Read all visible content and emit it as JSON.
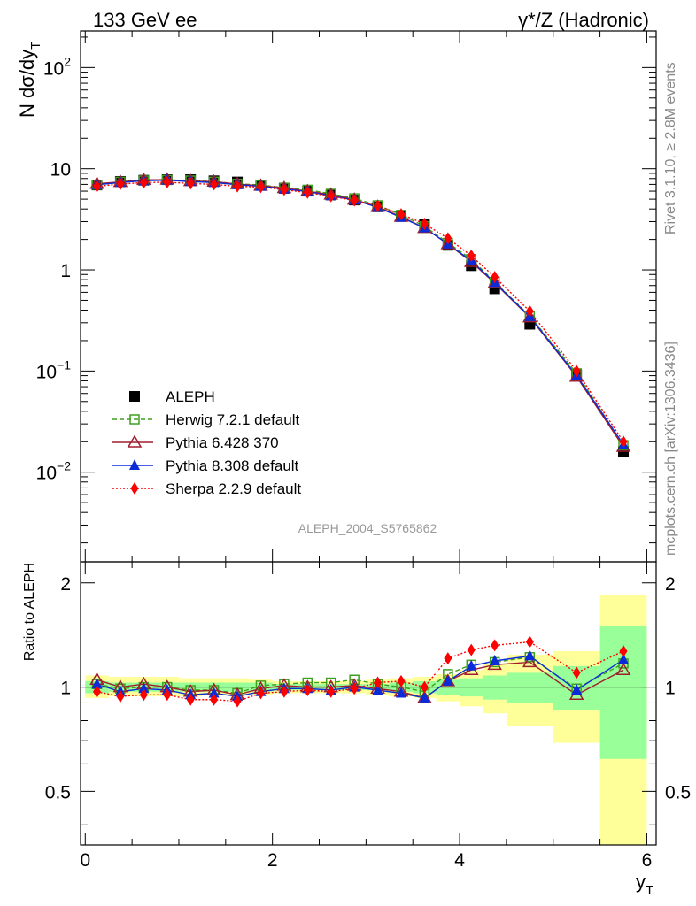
{
  "header": {
    "left_title": "133 GeV ee",
    "right_title": "γ*/Z (Hadronic)"
  },
  "side_text": {
    "upper": "Rivet 3.1.10, ≥ 2.8M events",
    "lower": "mcplots.cern.ch [arXiv:1306.3436]"
  },
  "watermark": "ALEPH_2004_S5765862",
  "chart_data": [
    {
      "type": "scatter",
      "panel": "main",
      "ylabel": "N dσ/dy",
      "ylabel_sub": "T",
      "yscale": "log",
      "ylim": [
        0.0013,
        230
      ],
      "xlim": [
        -0.05,
        6.1
      ],
      "yticks": [
        {
          "value": 100,
          "base": "10",
          "exp": "2"
        },
        {
          "value": 10,
          "base": "10",
          "exp": ""
        },
        {
          "value": 1,
          "base": "1",
          "exp": ""
        },
        {
          "value": 0.1,
          "base": "10",
          "exp": "−1"
        },
        {
          "value": 0.01,
          "base": "10",
          "exp": "−2"
        }
      ],
      "x": [
        0.125,
        0.375,
        0.625,
        0.875,
        1.125,
        1.375,
        1.625,
        1.875,
        2.125,
        2.375,
        2.625,
        2.875,
        3.125,
        3.375,
        3.625,
        3.875,
        4.125,
        4.375,
        4.75,
        5.25,
        5.75
      ],
      "legend_position": "lower-left",
      "series": [
        {
          "name": "ALEPH",
          "color": "#000000",
          "marker": "square-filled",
          "line": "none",
          "values": [
            6.9,
            7.5,
            7.7,
            7.8,
            7.8,
            7.6,
            7.4,
            6.9,
            6.4,
            6.0,
            5.5,
            4.9,
            4.2,
            3.4,
            2.8,
            1.75,
            1.1,
            0.65,
            0.29,
            0.092,
            0.016
          ]
        },
        {
          "name": "Herwig 7.2.1 default",
          "color": "#3f9f1f",
          "marker": "square-open",
          "line": "dashed",
          "values": [
            6.95,
            7.45,
            7.65,
            7.75,
            7.65,
            7.45,
            7.1,
            6.9,
            6.5,
            6.2,
            5.65,
            5.1,
            4.35,
            3.5,
            2.7,
            1.85,
            1.28,
            0.76,
            0.35,
            0.095,
            0.0185
          ]
        },
        {
          "name": "Pythia 6.428 370",
          "color": "#9f1f2f",
          "marker": "triangle-open",
          "line": "solid",
          "values": [
            7.1,
            7.4,
            7.75,
            7.8,
            7.55,
            7.45,
            7.05,
            6.8,
            6.45,
            6.0,
            5.55,
            4.95,
            4.2,
            3.35,
            2.6,
            1.8,
            1.2,
            0.74,
            0.34,
            0.088,
            0.0178
          ]
        },
        {
          "name": "Pythia 8.308 default",
          "color": "#0b2bd8",
          "marker": "triangle-filled",
          "line": "solid",
          "values": [
            6.95,
            7.3,
            7.6,
            7.7,
            7.45,
            7.3,
            6.95,
            6.7,
            6.3,
            5.95,
            5.4,
            4.9,
            4.15,
            3.3,
            2.6,
            1.8,
            1.23,
            0.75,
            0.345,
            0.09,
            0.0188
          ]
        },
        {
          "name": "Sherpa 2.2.9 default",
          "color": "#ff0000",
          "marker": "diamond-filled",
          "line": "dotted",
          "values": [
            6.7,
            7.05,
            7.3,
            7.35,
            7.15,
            7.0,
            6.7,
            6.6,
            6.2,
            5.8,
            5.35,
            4.85,
            4.3,
            3.55,
            2.85,
            2.05,
            1.38,
            0.85,
            0.39,
            0.1,
            0.02
          ]
        }
      ]
    },
    {
      "type": "scatter",
      "panel": "ratio",
      "ylabel": "Ratio to ALEPH",
      "xlabel": "y",
      "xlabel_sub": "T",
      "yscale": "log",
      "ylim": [
        0.35,
        2.3
      ],
      "xlim": [
        -0.05,
        6.1
      ],
      "yticks": [
        0.5,
        1,
        2
      ],
      "xticks": [
        0,
        2,
        4,
        6
      ],
      "reference_line": 1,
      "bins": [
        [
          0,
          0.25
        ],
        [
          0.25,
          0.5
        ],
        [
          0.5,
          0.75
        ],
        [
          0.75,
          1
        ],
        [
          1,
          1.25
        ],
        [
          1.25,
          1.5
        ],
        [
          1.5,
          1.75
        ],
        [
          1.75,
          2
        ],
        [
          2,
          2.25
        ],
        [
          2.25,
          2.5
        ],
        [
          2.5,
          2.75
        ],
        [
          2.75,
          3
        ],
        [
          3,
          3.25
        ],
        [
          3.25,
          3.5
        ],
        [
          3.5,
          3.75
        ],
        [
          3.75,
          4
        ],
        [
          4,
          4.25
        ],
        [
          4.25,
          4.5
        ],
        [
          4.5,
          5
        ],
        [
          5,
          5.5
        ],
        [
          5.5,
          6
        ]
      ],
      "data_stat_band": {
        "color": "#99ff99",
        "lo": [
          0.96,
          0.97,
          0.97,
          0.97,
          0.97,
          0.97,
          0.97,
          0.97,
          0.98,
          0.98,
          0.98,
          0.98,
          0.98,
          0.97,
          0.96,
          0.95,
          0.94,
          0.92,
          0.9,
          0.86,
          0.62
        ],
        "hi": [
          1.04,
          1.03,
          1.03,
          1.03,
          1.03,
          1.03,
          1.03,
          1.03,
          1.02,
          1.02,
          1.02,
          1.02,
          1.02,
          1.03,
          1.04,
          1.05,
          1.06,
          1.08,
          1.1,
          1.15,
          1.5
        ]
      },
      "data_total_band": {
        "color": "#ffff99",
        "lo": [
          0.93,
          0.94,
          0.94,
          0.94,
          0.94,
          0.95,
          0.95,
          0.95,
          0.96,
          0.96,
          0.96,
          0.96,
          0.95,
          0.94,
          0.93,
          0.91,
          0.88,
          0.84,
          0.77,
          0.69,
          0.35
        ],
        "hi": [
          1.08,
          1.07,
          1.07,
          1.07,
          1.06,
          1.06,
          1.06,
          1.05,
          1.04,
          1.04,
          1.04,
          1.04,
          1.05,
          1.06,
          1.07,
          1.09,
          1.12,
          1.17,
          1.24,
          1.27,
          1.85
        ]
      },
      "series": [
        {
          "name": "Herwig 7.2.1 default",
          "color": "#3f9f1f",
          "marker": "square-open",
          "line": "dashed",
          "values": [
            1.02,
            0.99,
            1.0,
            1.0,
            0.98,
            0.98,
            0.96,
            1.01,
            1.02,
            1.03,
            1.03,
            1.05,
            1.02,
            1.0,
            0.97,
            1.09,
            1.16,
            1.18,
            1.22,
            0.99,
            1.17
          ]
        },
        {
          "name": "Pythia 6.428 370",
          "color": "#9f1f2f",
          "marker": "triangle-open",
          "line": "solid",
          "values": [
            1.05,
            1.0,
            1.02,
            1.0,
            0.97,
            0.98,
            0.95,
            0.99,
            1.01,
            1.0,
            1.0,
            1.01,
            0.99,
            0.97,
            0.93,
            1.04,
            1.12,
            1.16,
            1.18,
            0.95,
            1.12
          ]
        },
        {
          "name": "Pythia 8.308 default",
          "color": "#0b2bd8",
          "marker": "triangle-filled",
          "line": "solid",
          "values": [
            1.02,
            0.97,
            0.99,
            0.98,
            0.95,
            0.96,
            0.94,
            0.97,
            0.99,
            0.99,
            0.98,
            1.0,
            0.98,
            0.96,
            0.93,
            1.04,
            1.15,
            1.19,
            1.23,
            0.98,
            1.2
          ]
        },
        {
          "name": "Sherpa 2.2.9 default",
          "color": "#ff0000",
          "marker": "diamond-filled",
          "line": "dotted",
          "values": [
            0.97,
            0.94,
            0.95,
            0.95,
            0.92,
            0.92,
            0.91,
            0.96,
            0.97,
            0.98,
            0.97,
            0.99,
            1.03,
            1.04,
            1.0,
            1.21,
            1.28,
            1.32,
            1.35,
            1.1,
            1.27
          ]
        }
      ]
    }
  ]
}
